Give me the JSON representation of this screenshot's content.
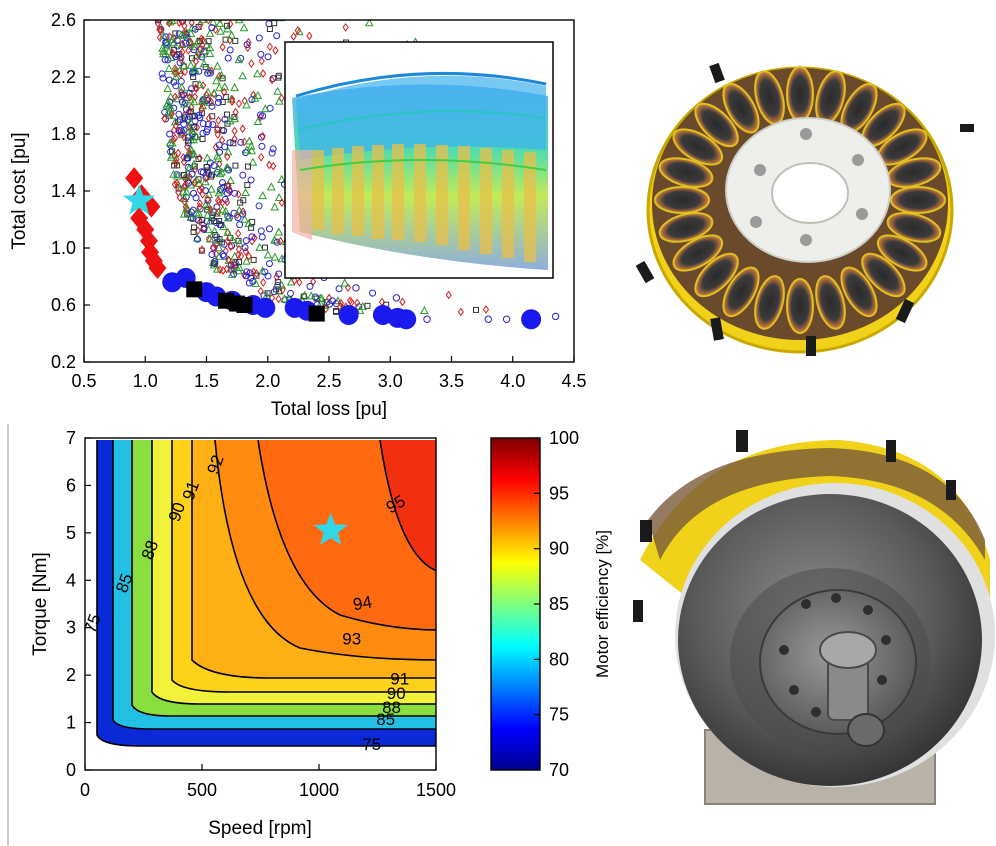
{
  "chart_data": [
    {
      "type": "scatter",
      "xlabel": "Total loss [pu]",
      "ylabel": "Total cost [pu]",
      "xlim": [
        0.5,
        4.5
      ],
      "ylim": [
        0.2,
        2.6
      ],
      "xticks": [
        "0.5",
        "1.0",
        "1.5",
        "2.0",
        "2.5",
        "3.0",
        "3.5",
        "4.0",
        "4.5"
      ],
      "yticks": [
        "0.2",
        "0.6",
        "1.0",
        "1.4",
        "1.8",
        "2.2",
        "2.6"
      ],
      "grid": false,
      "inset": "3D finite-element flux-density plot of stator segment",
      "pareto_series": [
        {
          "marker": "diamond",
          "color": "#ee1111",
          "points": [
            [
              0.91,
              1.49
            ],
            [
              0.97,
              1.37
            ],
            [
              0.95,
              1.21
            ],
            [
              1.0,
              1.13
            ],
            [
              1.03,
              1.05
            ],
            [
              1.04,
              0.97
            ],
            [
              1.07,
              0.91
            ],
            [
              1.1,
              0.86
            ],
            [
              1.05,
              1.29
            ]
          ]
        },
        {
          "marker": "star",
          "color": "#33d6e6",
          "points": [
            [
              0.95,
              1.33
            ]
          ]
        },
        {
          "marker": "circle",
          "color": "#1a1aee",
          "points": [
            [
              1.22,
              0.76
            ],
            [
              1.33,
              0.79
            ],
            [
              1.5,
              0.69
            ],
            [
              1.58,
              0.66
            ],
            [
              1.71,
              0.63
            ],
            [
              1.88,
              0.6
            ],
            [
              1.98,
              0.58
            ],
            [
              2.22,
              0.58
            ],
            [
              2.32,
              0.56
            ],
            [
              2.66,
              0.53
            ],
            [
              2.94,
              0.53
            ],
            [
              3.06,
              0.51
            ],
            [
              3.13,
              0.5
            ],
            [
              4.15,
              0.5
            ]
          ]
        },
        {
          "marker": "square",
          "color": "#000000",
          "points": [
            [
              1.4,
              0.71
            ],
            [
              1.66,
              0.63
            ],
            [
              1.75,
              0.61
            ],
            [
              1.81,
              0.6
            ],
            [
              2.4,
              0.54
            ]
          ]
        }
      ],
      "cloud_series": [
        {
          "marker": "open-triangle",
          "color": "#2a9a2a"
        },
        {
          "marker": "open-circle",
          "color": "#2424cc"
        },
        {
          "marker": "open-diamond",
          "color": "#d02020"
        },
        {
          "marker": "open-square",
          "color": "#333333"
        }
      ]
    },
    {
      "type": "heatmap",
      "xlabel": "Speed [rpm]",
      "ylabel": "Torque [Nm]",
      "xlim": [
        0,
        1500
      ],
      "ylim": [
        0,
        7
      ],
      "xticks": [
        "0",
        "500",
        "1000",
        "1500"
      ],
      "yticks": [
        "0",
        "1",
        "2",
        "3",
        "4",
        "5",
        "6",
        "7"
      ],
      "colorbar": {
        "label": "Motor efficiency [%]",
        "range": [
          70,
          100
        ],
        "ticks": [
          "70",
          "75",
          "80",
          "85",
          "90",
          "95",
          "100"
        ]
      },
      "contour_levels": [
        75,
        85,
        88,
        90,
        91,
        92,
        93,
        94,
        95
      ],
      "contour_labels": [
        {
          "text": "75",
          "x": 55,
          "y": 3.05,
          "rot": -70
        },
        {
          "text": "75",
          "x": 1225,
          "y": 0.42,
          "rot": 0
        },
        {
          "text": "85",
          "x": 190,
          "y": 3.9,
          "rot": -70
        },
        {
          "text": "88",
          "x": 300,
          "y": 4.6,
          "rot": -70
        },
        {
          "text": "90",
          "x": 415,
          "y": 5.4,
          "rot": -70
        },
        {
          "text": "91",
          "x": 475,
          "y": 5.85,
          "rot": -70
        },
        {
          "text": "92",
          "x": 580,
          "y": 6.4,
          "rot": -70
        },
        {
          "text": "93",
          "x": 1140,
          "y": 2.65,
          "rot": 0
        },
        {
          "text": "94",
          "x": 1190,
          "y": 3.4,
          "rot": -10
        },
        {
          "text": "95",
          "x": 1340,
          "y": 5.5,
          "rot": -30
        },
        {
          "text": "91",
          "x": 1345,
          "y": 1.8,
          "rot": 0
        },
        {
          "text": "90",
          "x": 1330,
          "y": 1.5,
          "rot": 0
        },
        {
          "text": "88",
          "x": 1310,
          "y": 1.2,
          "rot": 0
        },
        {
          "text": "85",
          "x": 1285,
          "y": 0.95,
          "rot": 0
        }
      ],
      "marker": {
        "symbol": "star",
        "color": "#33d6e6",
        "x": 1050,
        "y": 5.05
      }
    }
  ],
  "photos": [
    {
      "subject": "stator-top-view"
    },
    {
      "subject": "assembled-motor-side-view"
    }
  ]
}
